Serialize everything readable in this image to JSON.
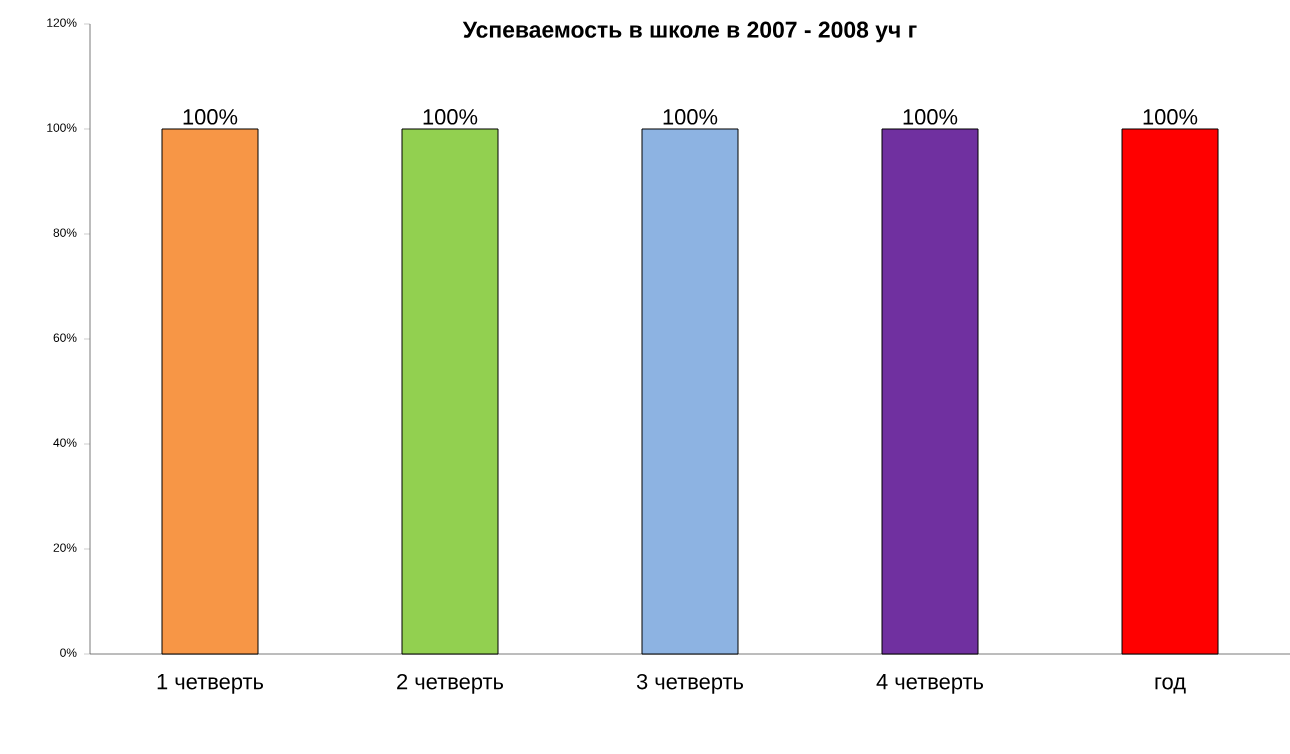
{
  "chart_data": {
    "type": "bar",
    "title": "Успеваемость в школе в 2007 - 2008 уч г",
    "categories": [
      "1 четверть",
      "2 четверть",
      "3 четверть",
      "4 четверть",
      "год"
    ],
    "values": [
      100,
      100,
      100,
      100,
      100
    ],
    "colors": [
      "#f79646",
      "#92d050",
      "#8db3e2",
      "#7030a0",
      "#ff0000"
    ],
    "value_labels": [
      "100%",
      "100%",
      "100%",
      "100%",
      "100%"
    ],
    "ylim": [
      0,
      120
    ],
    "yticks": [
      {
        "value": 0,
        "label": "0%"
      },
      {
        "value": 20,
        "label": "20%"
      },
      {
        "value": 40,
        "label": "40%"
      },
      {
        "value": 60,
        "label": "60%"
      },
      {
        "value": 80,
        "label": "80%"
      },
      {
        "value": 100,
        "label": "100%"
      },
      {
        "value": 120,
        "label": "120%"
      }
    ],
    "grid": false
  }
}
